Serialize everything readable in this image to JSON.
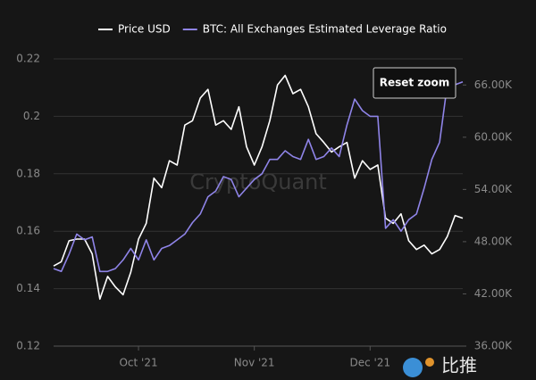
{
  "chart_data": {
    "type": "line",
    "categories": [
      null,
      null,
      null,
      null,
      null,
      null,
      null,
      null,
      null,
      null,
      null,
      "Oct '21",
      null,
      null,
      null,
      null,
      null,
      null,
      null,
      null,
      null,
      null,
      null,
      null,
      null,
      null,
      "Nov '21",
      null,
      null,
      null,
      null,
      null,
      null,
      null,
      null,
      null,
      null,
      null,
      null,
      null,
      null,
      "Dec '21",
      null,
      null,
      null,
      null,
      null,
      null,
      null,
      null,
      null,
      null,
      null,
      null
    ],
    "series": [
      {
        "name": "Price USD",
        "color": "#ffffff",
        "axis": "y2",
        "values": [
          45200,
          45700,
          48100,
          48300,
          48300,
          46600,
          41400,
          44000,
          42800,
          41900,
          44500,
          48300,
          50100,
          55300,
          54200,
          57300,
          56800,
          61400,
          61900,
          64500,
          65500,
          61400,
          61900,
          60900,
          63500,
          58900,
          56800,
          58900,
          61900,
          66000,
          67100,
          65000,
          65500,
          63500,
          60400,
          59400,
          58300,
          58900,
          59400,
          55300,
          57300,
          56300,
          56800,
          50700,
          50100,
          51200,
          48100,
          47100,
          47600,
          46600,
          47100,
          48600,
          51000,
          50700
        ]
      },
      {
        "name": "BTC: All Exchanges Estimated Leverage Ratio",
        "color": "#8f84e8",
        "values": [
          0.147,
          0.146,
          0.152,
          0.159,
          0.157,
          0.158,
          0.146,
          0.146,
          0.147,
          0.15,
          0.154,
          0.15,
          0.157,
          0.15,
          0.154,
          0.155,
          0.157,
          0.159,
          0.163,
          0.166,
          0.172,
          0.174,
          0.179,
          0.178,
          0.172,
          0.175,
          0.178,
          0.18,
          0.185,
          0.185,
          0.188,
          0.186,
          0.185,
          0.192,
          0.185,
          0.186,
          0.189,
          0.186,
          0.197,
          0.206,
          0.202,
          0.2,
          0.2,
          0.161,
          0.164,
          0.16,
          0.164,
          0.166,
          0.175,
          0.185,
          0.191,
          0.211,
          0.211,
          0.212
        ]
      }
    ],
    "ylim": [
      0.12,
      0.22
    ],
    "yticks": [
      0.12,
      0.14,
      0.16,
      0.18,
      0.2,
      0.22
    ],
    "y2lim": [
      36000,
      69000
    ],
    "y2ticks": [
      {
        "value": 36000,
        "label": "36.00K"
      },
      {
        "value": 42000,
        "label": "42.00K"
      },
      {
        "value": 48000,
        "label": "48.00K"
      },
      {
        "value": 54000,
        "label": "54.00K"
      },
      {
        "value": 60000,
        "label": "60.00K"
      },
      {
        "value": 66000,
        "label": "66.00K"
      }
    ],
    "grid": true,
    "legend": "top",
    "watermark": "CryptoQuant",
    "reset_zoom": "Reset zoom",
    "logo_text": "比推"
  }
}
